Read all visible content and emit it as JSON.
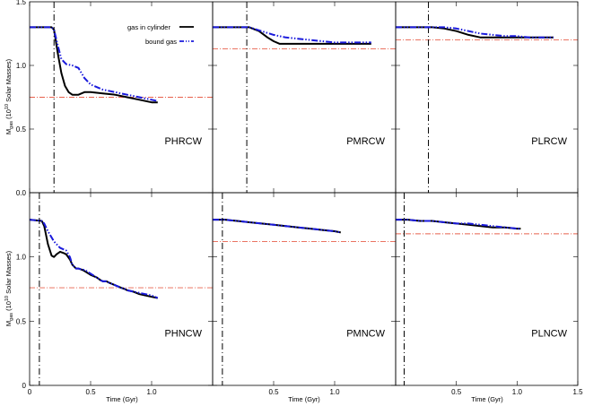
{
  "chart_data": {
    "type": "line",
    "layout": "2x3 grid, shared axes",
    "xlabel": "Time (Gyr)",
    "ylabel": "M_gas (10^10 Solar Masses)",
    "ylabel_main": "M",
    "ylabel_sub": "gas",
    "ylabel_rest": " (10",
    "ylabel_exp": "10",
    "ylabel_tail": " Solar Masses)",
    "xlim": [
      0,
      1.5
    ],
    "ylim": [
      0,
      1.5
    ],
    "xticks": [
      0,
      0.5,
      1.0,
      1.5
    ],
    "xtick_labels": [
      "0",
      "0.5",
      "1.0",
      "1.5"
    ],
    "yticks": [
      0,
      0.5,
      1.0
    ],
    "top_ytick_labels": [
      "0.0",
      "0.5",
      "1.0",
      "1.5"
    ],
    "bottom_ytick_labels": [
      "0",
      "0.5",
      "1.0"
    ],
    "legend": {
      "placement": "top, first panel",
      "entries": [
        {
          "label": "gas in cylinder",
          "color": "#000000",
          "style": "solid"
        },
        {
          "label": "bound gas",
          "color": "#1a1adc",
          "style": "dash-dot-dot"
        }
      ]
    },
    "colors": {
      "cylinder": "#000000",
      "bound": "#1a1adc",
      "reference": "#e8604c",
      "vline": "#000000"
    },
    "panels": [
      {
        "label": "PHRCW",
        "row": 0,
        "col": 0,
        "vline_x": 0.2,
        "ref_y": 0.75,
        "cylinder": {
          "x": [
            0,
            0.18,
            0.2,
            0.23,
            0.26,
            0.29,
            0.32,
            0.35,
            0.4,
            0.45,
            0.5,
            0.6,
            0.7,
            0.8,
            0.9,
            1.0,
            1.05
          ],
          "y": [
            1.3,
            1.3,
            1.28,
            1.1,
            0.94,
            0.84,
            0.79,
            0.77,
            0.77,
            0.79,
            0.79,
            0.78,
            0.77,
            0.75,
            0.73,
            0.71,
            0.71
          ]
        },
        "bound": {
          "x": [
            0,
            0.18,
            0.2,
            0.23,
            0.26,
            0.3,
            0.35,
            0.4,
            0.45,
            0.5,
            0.6,
            0.7,
            0.8,
            0.9,
            1.0,
            1.05
          ],
          "y": [
            1.3,
            1.3,
            1.28,
            1.16,
            1.05,
            1.01,
            1.0,
            0.98,
            0.9,
            0.85,
            0.81,
            0.79,
            0.77,
            0.75,
            0.73,
            0.72
          ]
        }
      },
      {
        "label": "PMRCW",
        "row": 0,
        "col": 1,
        "vline_x": 0.28,
        "ref_y": 1.13,
        "cylinder": {
          "x": [
            0,
            0.3,
            0.38,
            0.45,
            0.5,
            0.55,
            0.6,
            0.7,
            0.8,
            0.9,
            1.0,
            1.1,
            1.2,
            1.3
          ],
          "y": [
            1.3,
            1.3,
            1.27,
            1.22,
            1.19,
            1.17,
            1.17,
            1.17,
            1.17,
            1.17,
            1.17,
            1.17,
            1.17,
            1.17
          ]
        },
        "bound": {
          "x": [
            0,
            0.3,
            0.4,
            0.5,
            0.6,
            0.7,
            0.8,
            0.9,
            1.0,
            1.1,
            1.2,
            1.3
          ],
          "y": [
            1.3,
            1.3,
            1.27,
            1.24,
            1.22,
            1.21,
            1.2,
            1.19,
            1.18,
            1.18,
            1.18,
            1.18
          ]
        }
      },
      {
        "label": "PLRCW",
        "row": 0,
        "col": 2,
        "vline_x": 0.27,
        "ref_y": 1.2,
        "cylinder": {
          "x": [
            0,
            0.3,
            0.4,
            0.5,
            0.6,
            0.7,
            0.8,
            0.9,
            1.0,
            1.1,
            1.2,
            1.3
          ],
          "y": [
            1.3,
            1.3,
            1.29,
            1.27,
            1.24,
            1.22,
            1.22,
            1.22,
            1.22,
            1.22,
            1.22,
            1.22
          ]
        },
        "bound": {
          "x": [
            0,
            0.3,
            0.4,
            0.5,
            0.6,
            0.7,
            0.8,
            0.9,
            1.0,
            1.1,
            1.2,
            1.3
          ],
          "y": [
            1.3,
            1.3,
            1.3,
            1.29,
            1.27,
            1.25,
            1.24,
            1.23,
            1.23,
            1.22,
            1.22,
            1.22
          ]
        }
      },
      {
        "label": "PHNCW",
        "row": 1,
        "col": 0,
        "vline_x": 0.08,
        "ref_y": 0.76,
        "cylinder": {
          "x": [
            0,
            0.1,
            0.12,
            0.15,
            0.18,
            0.2,
            0.22,
            0.25,
            0.28,
            0.3,
            0.33,
            0.35,
            0.38,
            0.4,
            0.43,
            0.45,
            0.5,
            0.55,
            0.58,
            0.6,
            0.63,
            0.65,
            0.7,
            0.75,
            0.78,
            0.8,
            0.85,
            0.9,
            0.95,
            1.0,
            1.05
          ],
          "y": [
            1.29,
            1.28,
            1.24,
            1.1,
            1.01,
            1.0,
            1.02,
            1.04,
            1.03,
            1.02,
            0.98,
            0.94,
            0.91,
            0.91,
            0.9,
            0.89,
            0.86,
            0.84,
            0.82,
            0.81,
            0.81,
            0.8,
            0.78,
            0.76,
            0.75,
            0.74,
            0.73,
            0.71,
            0.7,
            0.69,
            0.68
          ]
        },
        "bound": {
          "x": [
            0,
            0.1,
            0.12,
            0.15,
            0.2,
            0.25,
            0.3,
            0.33,
            0.35,
            0.38,
            0.4,
            0.43,
            0.45,
            0.5,
            0.55,
            0.58,
            0.6,
            0.63,
            0.65,
            0.7,
            0.75,
            0.78,
            0.8,
            0.85,
            0.9,
            0.95,
            1.0,
            1.05
          ],
          "y": [
            1.29,
            1.28,
            1.26,
            1.2,
            1.12,
            1.07,
            1.05,
            1.0,
            0.94,
            0.91,
            0.91,
            0.9,
            0.9,
            0.87,
            0.84,
            0.82,
            0.81,
            0.81,
            0.8,
            0.78,
            0.76,
            0.75,
            0.74,
            0.73,
            0.72,
            0.71,
            0.7,
            0.68
          ]
        }
      },
      {
        "label": "PMNCW",
        "row": 1,
        "col": 1,
        "vline_x": 0.08,
        "ref_y": 1.12,
        "cylinder": {
          "x": [
            0,
            0.1,
            0.2,
            0.3,
            0.4,
            0.5,
            0.6,
            0.7,
            0.8,
            0.9,
            1.0,
            1.05
          ],
          "y": [
            1.29,
            1.29,
            1.28,
            1.27,
            1.26,
            1.25,
            1.24,
            1.23,
            1.22,
            1.21,
            1.2,
            1.19
          ]
        },
        "bound": {
          "x": [
            0,
            0.1,
            0.2,
            0.3,
            0.4,
            0.5,
            0.6,
            0.7,
            0.8,
            0.9,
            1.0,
            1.05
          ],
          "y": [
            1.29,
            1.29,
            1.28,
            1.27,
            1.26,
            1.25,
            1.24,
            1.23,
            1.22,
            1.21,
            1.2,
            1.19
          ]
        }
      },
      {
        "label": "PLNCW",
        "row": 1,
        "col": 2,
        "vline_x": 0.07,
        "ref_y": 1.18,
        "cylinder": {
          "x": [
            0,
            0.1,
            0.2,
            0.3,
            0.4,
            0.5,
            0.6,
            0.7,
            0.8,
            0.9,
            1.0,
            1.03
          ],
          "y": [
            1.29,
            1.29,
            1.28,
            1.28,
            1.27,
            1.26,
            1.25,
            1.24,
            1.23,
            1.23,
            1.22,
            1.22
          ]
        },
        "bound": {
          "x": [
            0,
            0.1,
            0.2,
            0.3,
            0.4,
            0.5,
            0.6,
            0.7,
            0.8,
            0.9,
            1.0,
            1.03
          ],
          "y": [
            1.29,
            1.29,
            1.28,
            1.28,
            1.27,
            1.26,
            1.26,
            1.25,
            1.24,
            1.23,
            1.22,
            1.22
          ]
        }
      }
    ]
  }
}
